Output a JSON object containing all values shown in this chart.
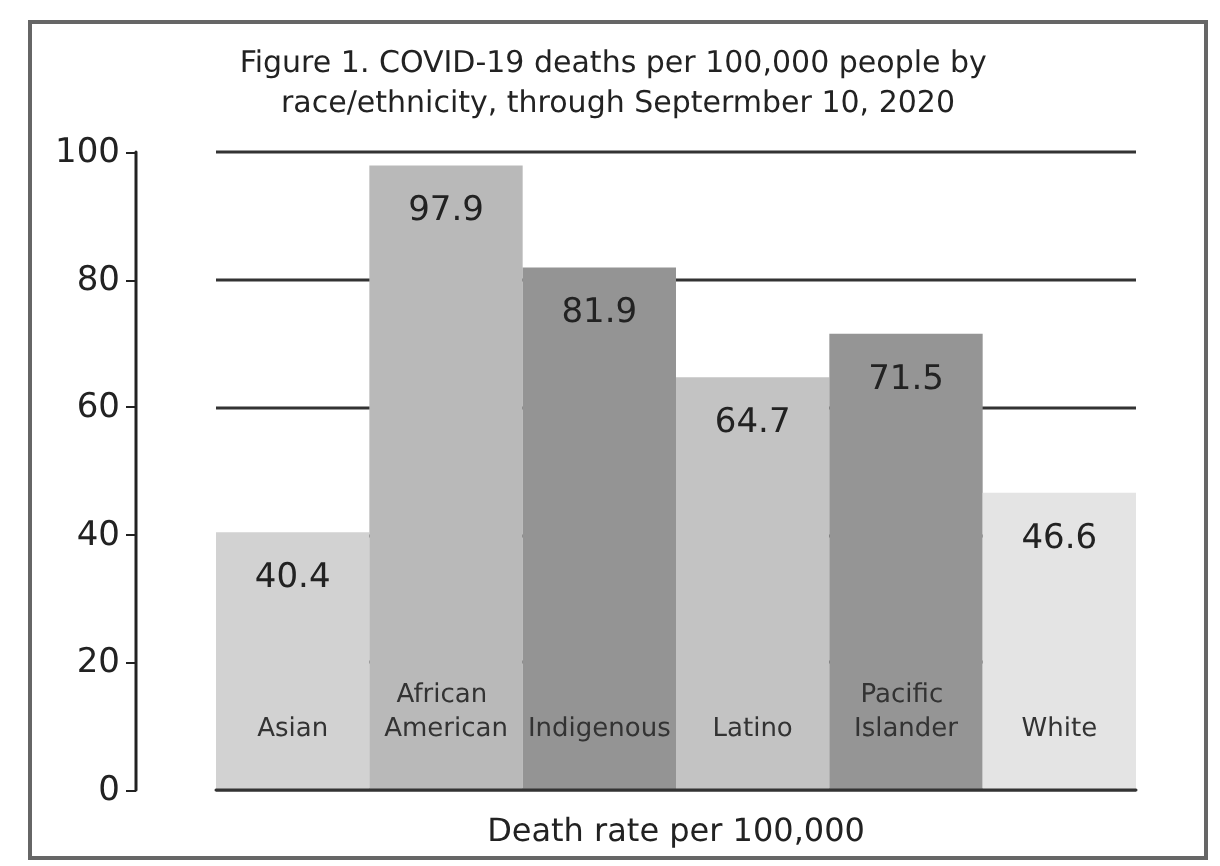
{
  "chart_data": {
    "type": "bar",
    "title": "Figure 1. COVID-19 deaths per 100,000 people by race/ethnicity, through Septermber 10, 2020",
    "xlabel": "Death rate per 100,000",
    "categories": [
      "Asian",
      "African American",
      "Indigenous",
      "Latino",
      "Pacific Islander",
      "White"
    ],
    "values": [
      40.4,
      97.9,
      81.9,
      64.7,
      71.5,
      46.6
    ],
    "colors": [
      "#d2d2d2",
      "#b9b9b9",
      "#949494",
      "#c3c3c3",
      "#959595",
      "#e4e4e4"
    ],
    "ylim": [
      0,
      100
    ],
    "yticks": [
      0,
      20,
      40,
      60,
      80,
      100
    ],
    "grid": "y",
    "data_labels": true
  }
}
